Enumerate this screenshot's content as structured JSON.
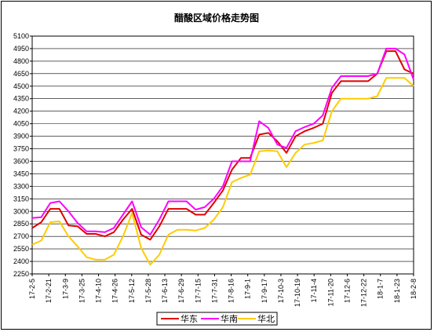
{
  "chart_data": {
    "type": "line",
    "title": "醋酸区域价格走势图",
    "xlabel": "",
    "ylabel": "",
    "ylim": [
      2250,
      5100
    ],
    "yticks": [
      2250,
      2400,
      2550,
      2700,
      2850,
      3000,
      3150,
      3300,
      3450,
      3600,
      3750,
      3900,
      4050,
      4200,
      4350,
      4500,
      4650,
      4800,
      4950,
      5100
    ],
    "x_tick_labels": [
      "17-2-5",
      "17-2-21",
      "17-3-9",
      "17-3-25",
      "17-4-10",
      "17-4-26",
      "17-5-12",
      "17-5-28",
      "17-6-13",
      "17-6-29",
      "17-7-15",
      "17-7-31",
      "17-8-16",
      "17-9-1",
      "17-9-17",
      "17-10-3",
      "17-10-19",
      "17-11-4",
      "17-11-20",
      "17-12-6",
      "17-12-22",
      "18-1-7",
      "18-1-23",
      "18-2-8"
    ],
    "grid": true,
    "legend_position": "bottom",
    "colors": {
      "华东": "#e00000",
      "华南": "#ff00ff",
      "华北": "#ffcc00"
    },
    "series": [
      {
        "name": "华东",
        "values": [
          2800,
          2870,
          3030,
          3030,
          2830,
          2820,
          2730,
          2730,
          2700,
          2750,
          2900,
          3030,
          2720,
          2660,
          2820,
          3030,
          3030,
          3030,
          2960,
          2960,
          3100,
          3250,
          3500,
          3640,
          3640,
          3920,
          3940,
          3840,
          3700,
          3900,
          3960,
          4000,
          4050,
          4420,
          4560,
          4560,
          4560,
          4560,
          4650,
          4920,
          4920,
          4700,
          4650
        ]
      },
      {
        "name": "华南",
        "values": [
          2920,
          2930,
          3100,
          3120,
          3000,
          2860,
          2760,
          2760,
          2750,
          2800,
          2960,
          3120,
          2810,
          2720,
          2900,
          3120,
          3120,
          3120,
          3020,
          3050,
          3150,
          3300,
          3600,
          3600,
          3600,
          4080,
          4000,
          3800,
          3760,
          3960,
          4010,
          4050,
          4150,
          4480,
          4620,
          4620,
          4620,
          4620,
          4650,
          4950,
          4950,
          4880,
          4580
        ]
      },
      {
        "name": "华北",
        "values": [
          2600,
          2650,
          2870,
          2880,
          2700,
          2580,
          2450,
          2420,
          2420,
          2480,
          2700,
          2980,
          2560,
          2360,
          2480,
          2720,
          2780,
          2780,
          2770,
          2800,
          2900,
          3050,
          3350,
          3400,
          3440,
          3720,
          3730,
          3720,
          3530,
          3700,
          3800,
          3820,
          3850,
          4200,
          4350,
          4350,
          4350,
          4350,
          4380,
          4600,
          4600,
          4600,
          4500
        ]
      }
    ]
  }
}
